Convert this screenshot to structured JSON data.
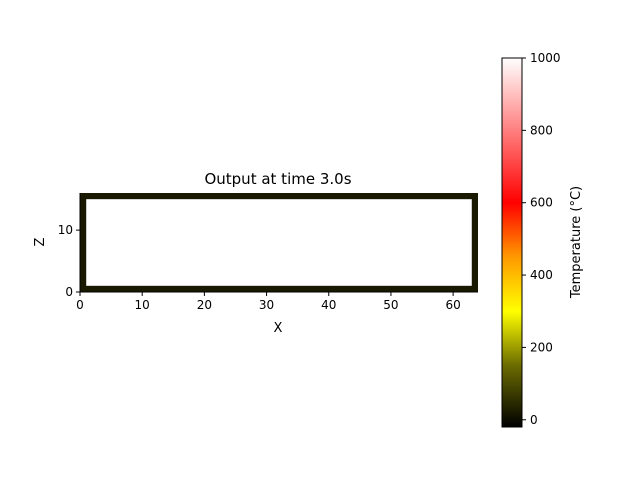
{
  "chart_data": {
    "type": "heatmap",
    "title": "Output at time 3.0s",
    "xlabel": "X",
    "ylabel": "Z",
    "xlim": [
      0,
      64
    ],
    "ylim": [
      0,
      16
    ],
    "xticks": [
      0,
      10,
      20,
      30,
      40,
      50,
      60
    ],
    "yticks": [
      0,
      10
    ],
    "grid": false,
    "field": {
      "description_values": "temperature field: interior cells near 1000 °C (white), one-cell border ~20 °C (dark)",
      "interior_temperature": 1000,
      "boundary_temperature": 20,
      "boundary_cells": {
        "left": 1,
        "right": 1,
        "top": 1,
        "bottom": 1
      }
    },
    "colorbar": {
      "label": "Temperature (°C)",
      "range": [
        -20,
        1000
      ],
      "ticks": [
        0,
        200,
        400,
        600,
        800,
        1000
      ],
      "colormap": [
        {
          "value": -20,
          "color": "#000000"
        },
        {
          "value": 150,
          "color": "#6b6b00"
        },
        {
          "value": 300,
          "color": "#ffff00"
        },
        {
          "value": 450,
          "color": "#ff9900"
        },
        {
          "value": 600,
          "color": "#ff0000"
        },
        {
          "value": 800,
          "color": "#ff7f7f"
        },
        {
          "value": 1000,
          "color": "#ffffff"
        }
      ]
    }
  }
}
